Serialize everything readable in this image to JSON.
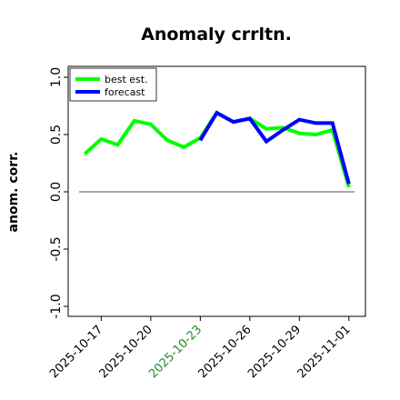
{
  "chart_data": {
    "type": "line",
    "title": "Anomaly crrltn.",
    "xlabel": "",
    "ylabel": "anom. corr.",
    "ylim": [
      -1.0,
      1.0
    ],
    "yticks": [
      "-1.0",
      "-0.5",
      "0.0",
      "0.5",
      "1.0"
    ],
    "ytick_values": [
      -1.0,
      -0.5,
      0.0,
      0.5,
      1.0
    ],
    "xlim": [
      "2025-10-15",
      "2025-11-02"
    ],
    "xticks": [
      "2025-10-17",
      "2025-10-20",
      "2025-10-23",
      "2025-10-26",
      "2025-10-29",
      "2025-11-01"
    ],
    "xtick_colors": [
      "#000000",
      "#000000",
      "#228B22",
      "#000000",
      "#000000",
      "#000000"
    ],
    "reference_line": {
      "y": 0.0,
      "color": "#555555"
    },
    "legend": {
      "placement": "top-left"
    },
    "grid": false,
    "series": [
      {
        "name": "best est.",
        "color": "#00ff00",
        "x": [
          "2025-10-16",
          "2025-10-17",
          "2025-10-18",
          "2025-10-19",
          "2025-10-20",
          "2025-10-21",
          "2025-10-22",
          "2025-10-23",
          "2025-10-24",
          "2025-10-25",
          "2025-10-26",
          "2025-10-27",
          "2025-10-28",
          "2025-10-29",
          "2025-10-30",
          "2025-10-31",
          "2025-11-01"
        ],
        "values": [
          0.33,
          0.46,
          0.41,
          0.62,
          0.59,
          0.45,
          0.39,
          0.47,
          0.69,
          0.61,
          0.64,
          0.55,
          0.56,
          0.51,
          0.5,
          0.54,
          0.04
        ]
      },
      {
        "name": "forecast",
        "color": "#0000ff",
        "x": [
          "2025-10-23",
          "2025-10-24",
          "2025-10-25",
          "2025-10-26",
          "2025-10-27",
          "2025-10-28",
          "2025-10-29",
          "2025-10-30",
          "2025-10-31",
          "2025-11-01"
        ],
        "values": [
          0.45,
          0.69,
          0.61,
          0.64,
          0.44,
          0.54,
          0.63,
          0.6,
          0.6,
          0.07
        ]
      }
    ]
  }
}
